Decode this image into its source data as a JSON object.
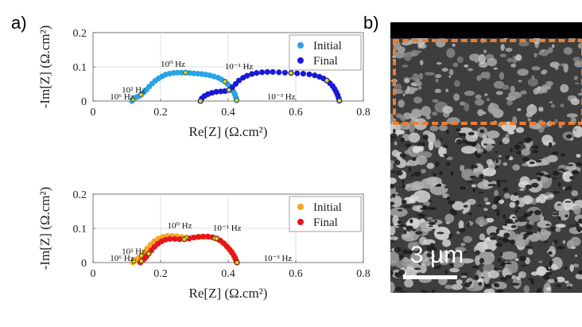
{
  "panel_labels": {
    "a": "a)",
    "b": "b)"
  },
  "colors": {
    "initial_top": "#29A3E8",
    "final_top": "#1A1AD6",
    "initial_bottom": "#F5A623",
    "final_bottom": "#E8141A",
    "freq_marker": "#D8D820",
    "sem_box": "#ED7D31"
  },
  "chart_data": [
    {
      "type": "scatter",
      "xlabel": "Re[Z]  (Ω.cm²)",
      "ylabel": "-Im[Z]  (Ω.cm²)",
      "xlim": [
        0,
        0.8
      ],
      "ylim": [
        0,
        0.2
      ],
      "xticks": [
        "0",
        "0.2",
        "0.4",
        "0.6",
        "0.8"
      ],
      "yticks": [
        "0",
        "0.1",
        "0.2"
      ],
      "legend": {
        "placement": "top-right",
        "entries": [
          "Initial",
          "Final"
        ]
      },
      "annotations": [
        {
          "text": "10⁶ Hz",
          "x": 0.05,
          "y": 0.0
        },
        {
          "text": "10² Hz",
          "x": 0.085,
          "y": 0.02
        },
        {
          "text": "10⁰ Hz",
          "x": 0.2,
          "y": 0.095
        },
        {
          "text": "10⁻¹ Hz",
          "x": 0.39,
          "y": 0.088
        },
        {
          "text": "10⁻³ Hz",
          "x": 0.515,
          "y": 0.0
        }
      ],
      "series": [
        {
          "name": "Initial",
          "x": [
            0.115,
            0.118,
            0.122,
            0.128,
            0.135,
            0.142,
            0.15,
            0.158,
            0.166,
            0.175,
            0.184,
            0.194,
            0.204,
            0.214,
            0.226,
            0.238,
            0.25,
            0.262,
            0.274,
            0.286,
            0.298,
            0.31,
            0.322,
            0.334,
            0.346,
            0.358,
            0.37,
            0.38,
            0.39,
            0.398,
            0.405,
            0.411,
            0.416,
            0.42,
            0.423,
            0.425
          ],
          "y": [
            0.0,
            0.005,
            0.008,
            0.011,
            0.014,
            0.018,
            0.025,
            0.033,
            0.042,
            0.051,
            0.059,
            0.066,
            0.072,
            0.077,
            0.08,
            0.082,
            0.083,
            0.083,
            0.083,
            0.082,
            0.081,
            0.08,
            0.079,
            0.077,
            0.075,
            0.072,
            0.068,
            0.063,
            0.057,
            0.05,
            0.043,
            0.035,
            0.027,
            0.019,
            0.01,
            0.002
          ]
        },
        {
          "name": "Final",
          "x": [
            0.318,
            0.322,
            0.33,
            0.34,
            0.352,
            0.365,
            0.378,
            0.39,
            0.402,
            0.412,
            0.422,
            0.432,
            0.444,
            0.456,
            0.47,
            0.484,
            0.5,
            0.516,
            0.532,
            0.55,
            0.568,
            0.586,
            0.604,
            0.622,
            0.64,
            0.656,
            0.67,
            0.682,
            0.692,
            0.701,
            0.709,
            0.715,
            0.72,
            0.724,
            0.727,
            0.729
          ],
          "y": [
            0.0,
            0.008,
            0.015,
            0.02,
            0.024,
            0.027,
            0.028,
            0.029,
            0.032,
            0.04,
            0.05,
            0.06,
            0.068,
            0.074,
            0.079,
            0.082,
            0.084,
            0.085,
            0.085,
            0.084,
            0.083,
            0.082,
            0.081,
            0.08,
            0.078,
            0.075,
            0.071,
            0.066,
            0.06,
            0.052,
            0.044,
            0.035,
            0.026,
            0.017,
            0.008,
            0.001
          ]
        }
      ],
      "freq_markers": [
        {
          "x": 0.118,
          "y": 0.005
        },
        {
          "x": 0.142,
          "y": 0.018
        },
        {
          "x": 0.274,
          "y": 0.083
        },
        {
          "x": 0.39,
          "y": 0.057
        },
        {
          "x": 0.425,
          "y": 0.002
        },
        {
          "x": 0.318,
          "y": 0.0
        },
        {
          "x": 0.402,
          "y": 0.032
        },
        {
          "x": 0.586,
          "y": 0.082
        },
        {
          "x": 0.692,
          "y": 0.06
        },
        {
          "x": 0.729,
          "y": 0.001
        }
      ]
    },
    {
      "type": "scatter",
      "xlabel": "Re[Z]  (Ω.cm²)",
      "ylabel": "-Im[Z]  (Ω.cm²)",
      "xlim": [
        0,
        0.8
      ],
      "ylim": [
        0,
        0.2
      ],
      "xticks": [
        "0",
        "0.2",
        "0.4",
        "0.6",
        "0.8"
      ],
      "yticks": [
        "0",
        "0.1",
        "0.2"
      ],
      "legend": {
        "placement": "top-right",
        "entries": [
          "Initial",
          "Final"
        ]
      },
      "annotations": [
        {
          "text": "10⁶ Hz",
          "x": 0.05,
          "y": 0.0
        },
        {
          "text": "10² Hz",
          "x": 0.085,
          "y": 0.02
        },
        {
          "text": "10⁰ Hz",
          "x": 0.22,
          "y": 0.095
        },
        {
          "text": "10⁻¹ Hz",
          "x": 0.355,
          "y": 0.088
        },
        {
          "text": "10⁻³ Hz",
          "x": 0.505,
          "y": 0.0
        }
      ],
      "series": [
        {
          "name": "Initial",
          "x": [
            0.118,
            0.121,
            0.125,
            0.13,
            0.136,
            0.143,
            0.151,
            0.16,
            0.17,
            0.181,
            0.193,
            0.206,
            0.22,
            0.234,
            0.248,
            0.262,
            0.276,
            0.29,
            0.304,
            0.318,
            0.332,
            0.346,
            0.36,
            0.372,
            0.383,
            0.393,
            0.402,
            0.41,
            0.416,
            0.421,
            0.424,
            0.426
          ],
          "y": [
            0.0,
            0.004,
            0.007,
            0.01,
            0.014,
            0.02,
            0.03,
            0.041,
            0.052,
            0.062,
            0.07,
            0.075,
            0.078,
            0.078,
            0.077,
            0.075,
            0.073,
            0.073,
            0.074,
            0.075,
            0.075,
            0.074,
            0.071,
            0.066,
            0.059,
            0.051,
            0.042,
            0.033,
            0.023,
            0.014,
            0.006,
            0.0
          ]
        },
        {
          "name": "Final",
          "x": [
            0.14,
            0.143,
            0.147,
            0.152,
            0.158,
            0.165,
            0.173,
            0.182,
            0.192,
            0.203,
            0.215,
            0.228,
            0.242,
            0.256,
            0.27,
            0.284,
            0.298,
            0.312,
            0.326,
            0.34,
            0.354,
            0.366,
            0.377,
            0.387,
            0.396,
            0.404,
            0.411,
            0.417,
            0.421,
            0.424,
            0.426
          ],
          "y": [
            0.0,
            0.004,
            0.007,
            0.011,
            0.017,
            0.026,
            0.036,
            0.046,
            0.055,
            0.062,
            0.067,
            0.069,
            0.069,
            0.068,
            0.068,
            0.07,
            0.073,
            0.075,
            0.076,
            0.076,
            0.074,
            0.07,
            0.064,
            0.056,
            0.047,
            0.038,
            0.029,
            0.02,
            0.011,
            0.004,
            0.0
          ]
        }
      ],
      "freq_markers": [
        {
          "x": 0.121,
          "y": 0.004
        },
        {
          "x": 0.143,
          "y": 0.02
        },
        {
          "x": 0.276,
          "y": 0.073
        },
        {
          "x": 0.36,
          "y": 0.071
        },
        {
          "x": 0.426,
          "y": 0.0
        },
        {
          "x": 0.143,
          "y": 0.004
        },
        {
          "x": 0.165,
          "y": 0.026
        },
        {
          "x": 0.27,
          "y": 0.068
        },
        {
          "x": 0.366,
          "y": 0.07
        },
        {
          "x": 0.426,
          "y": 0.0
        }
      ]
    }
  ],
  "sem": {
    "scale_label": "3 µm"
  }
}
